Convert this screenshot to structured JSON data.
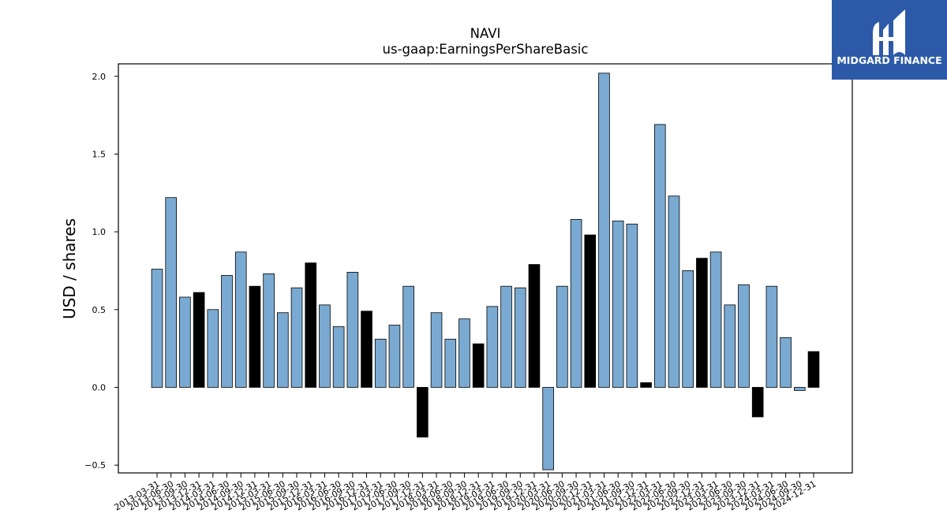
{
  "chart_data": {
    "type": "bar",
    "title": "NAVI",
    "subtitle": "us-gaap:EarningsPerShareBasic",
    "ylabel": "USD / shares",
    "xlabel": "",
    "ylim": [
      -0.55,
      2.08
    ],
    "yticks": [
      -0.5,
      0.0,
      0.5,
      1.0,
      1.5,
      2.0
    ],
    "ytick_labels": [
      "−0.5",
      "0.0",
      "0.5",
      "1.0",
      "1.5",
      "2.0"
    ],
    "grid": false,
    "colors": {
      "quarter": "#7aaad2",
      "year_end": "#000000",
      "edge": "#000000"
    },
    "categories": [
      "2013-03-31",
      "2013-06-30",
      "2013-09-30",
      "2013-12-31",
      "2014-03-31",
      "2014-06-30",
      "2014-09-30",
      "2014-12-31",
      "2015-03-31",
      "2015-06-30",
      "2015-09-30",
      "2015-12-31",
      "2016-03-31",
      "2016-06-30",
      "2016-09-30",
      "2016-12-31",
      "2017-03-31",
      "2017-06-30",
      "2017-09-30",
      "2017-12-31",
      "2018-03-31",
      "2018-06-30",
      "2018-09-30",
      "2018-12-31",
      "2019-03-31",
      "2019-06-30",
      "2019-09-30",
      "2019-12-31",
      "2020-03-31",
      "2020-06-30",
      "2020-09-30",
      "2020-12-31",
      "2021-03-31",
      "2021-06-30",
      "2021-09-30",
      "2021-12-31",
      "2022-03-31",
      "2022-06-30",
      "2022-09-30",
      "2022-12-31",
      "2023-03-31",
      "2023-06-30",
      "2023-09-30",
      "2023-12-31",
      "2024-03-31",
      "2024-06-30",
      "2024-09-30",
      "2024-12-31"
    ],
    "values": [
      0.76,
      1.22,
      0.58,
      0.61,
      0.5,
      0.72,
      0.87,
      0.65,
      0.73,
      0.48,
      0.64,
      0.8,
      0.53,
      0.39,
      0.74,
      0.49,
      0.31,
      0.4,
      0.65,
      -0.32,
      0.48,
      0.31,
      0.44,
      0.28,
      0.52,
      0.65,
      0.64,
      0.79,
      -0.53,
      0.65,
      1.08,
      0.98,
      2.02,
      1.07,
      1.05,
      0.03,
      1.69,
      1.23,
      0.75,
      0.83,
      0.87,
      0.53,
      0.66,
      -0.19,
      0.65,
      0.32,
      -0.02,
      0.23
    ]
  },
  "logo": {
    "text": "MIDGARD FINANCE",
    "background": "#2d5aa8"
  }
}
